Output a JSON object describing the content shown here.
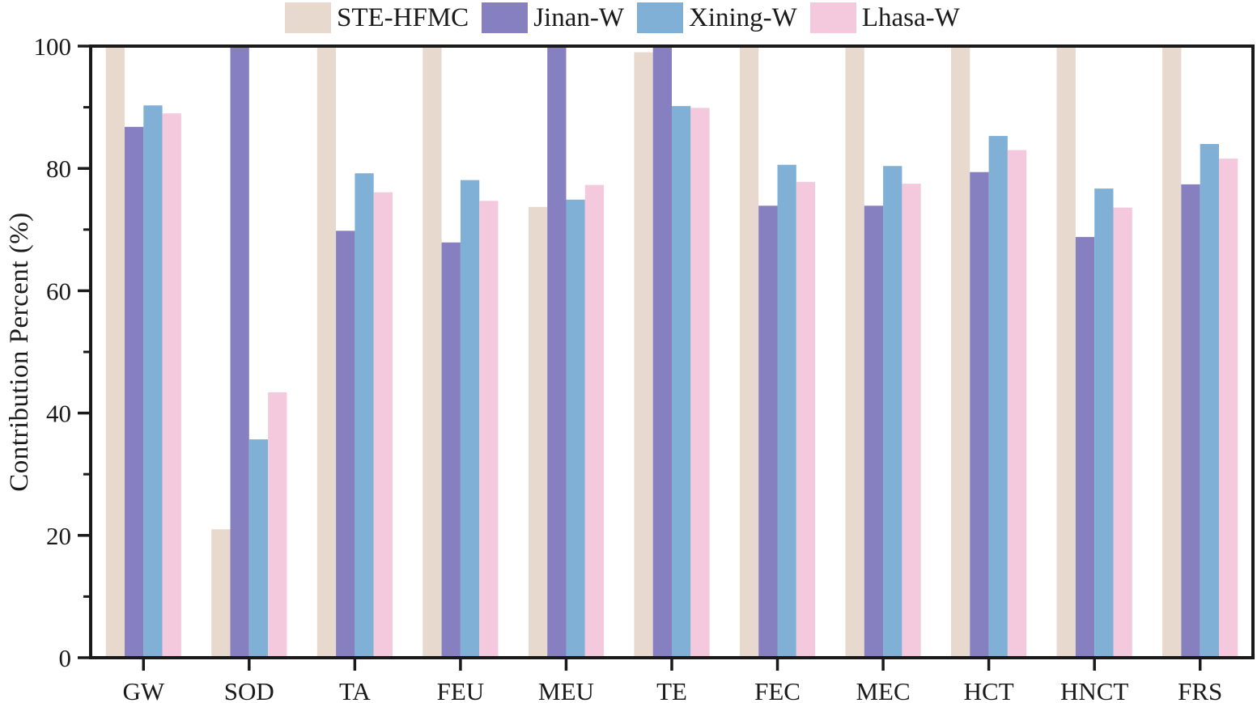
{
  "chart_data": {
    "type": "bar",
    "title": "",
    "xlabel": "",
    "ylabel": "Contribution Percent (%)",
    "ylim": [
      0,
      100
    ],
    "yticks": [
      0,
      20,
      40,
      60,
      80,
      100
    ],
    "minor_ytick_step": 10,
    "grid": false,
    "legend_position": "top-outside",
    "categories": [
      "GW",
      "SOD",
      "TA",
      "FEU",
      "MEU",
      "TE",
      "FEC",
      "MEC",
      "HCT",
      "HNCT",
      "FRS"
    ],
    "series": [
      {
        "name": "STE-HFMC",
        "color": "#e7d9ce",
        "values": [
          100,
          21,
          100,
          100,
          73.7,
          99,
          100,
          100,
          100,
          100,
          100
        ]
      },
      {
        "name": "Jinan-W",
        "color": "#8780c0",
        "values": [
          86.8,
          100,
          69.8,
          67.9,
          100,
          100,
          73.9,
          73.9,
          79.4,
          68.8,
          77.4
        ]
      },
      {
        "name": "Xining-W",
        "color": "#80b0d5",
        "values": [
          90.3,
          35.7,
          79.2,
          78.1,
          74.9,
          90.2,
          80.6,
          80.4,
          85.3,
          76.7,
          84.0
        ]
      },
      {
        "name": "Lhasa-W",
        "color": "#f5c9dd",
        "values": [
          89.0,
          43.4,
          76.1,
          74.7,
          77.3,
          89.9,
          77.8,
          77.5,
          83.0,
          73.6,
          81.6
        ]
      }
    ],
    "axis_color": "#1a1a1a"
  }
}
